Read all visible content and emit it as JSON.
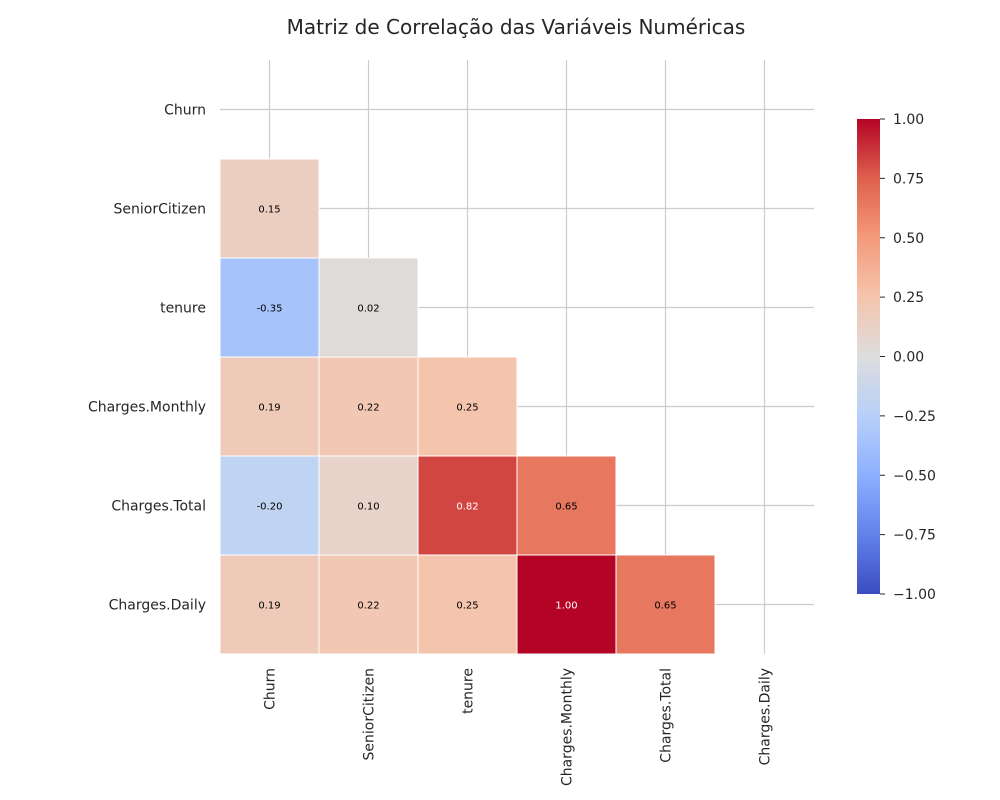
{
  "chart_data": {
    "type": "heatmap",
    "title": "Matriz de Correlação das Variáveis Numéricas",
    "variables": [
      "Churn",
      "SeniorCitizen",
      "tenure",
      "Charges.Monthly",
      "Charges.Total",
      "Charges.Daily"
    ],
    "mask": "upper-triangle-including-diagonal",
    "matrix": [
      [
        null,
        null,
        null,
        null,
        null,
        null
      ],
      [
        0.15,
        null,
        null,
        null,
        null,
        null
      ],
      [
        -0.35,
        0.02,
        null,
        null,
        null,
        null
      ],
      [
        0.19,
        0.22,
        0.25,
        null,
        null,
        null
      ],
      [
        -0.2,
        0.1,
        0.82,
        0.65,
        null,
        null
      ],
      [
        0.19,
        0.22,
        0.25,
        1.0,
        0.65,
        null
      ]
    ],
    "colormap": "coolwarm",
    "vmin": -1,
    "vmax": 1,
    "annotation_format": "0.00",
    "colorbar_ticks": [
      "1.00",
      "0.75",
      "0.50",
      "0.25",
      "0.00",
      "−0.25",
      "−0.50",
      "−0.75",
      "−1.00"
    ],
    "colorbar_tick_values": [
      1.0,
      0.75,
      0.5,
      0.25,
      0.0,
      -0.25,
      -0.5,
      -0.75,
      -1.0
    ],
    "grid": true,
    "colors": {
      "grid": "#cccccc",
      "cell_border": "#ffffff",
      "text_dark": "#000000",
      "text_light": "#ffffff"
    }
  }
}
